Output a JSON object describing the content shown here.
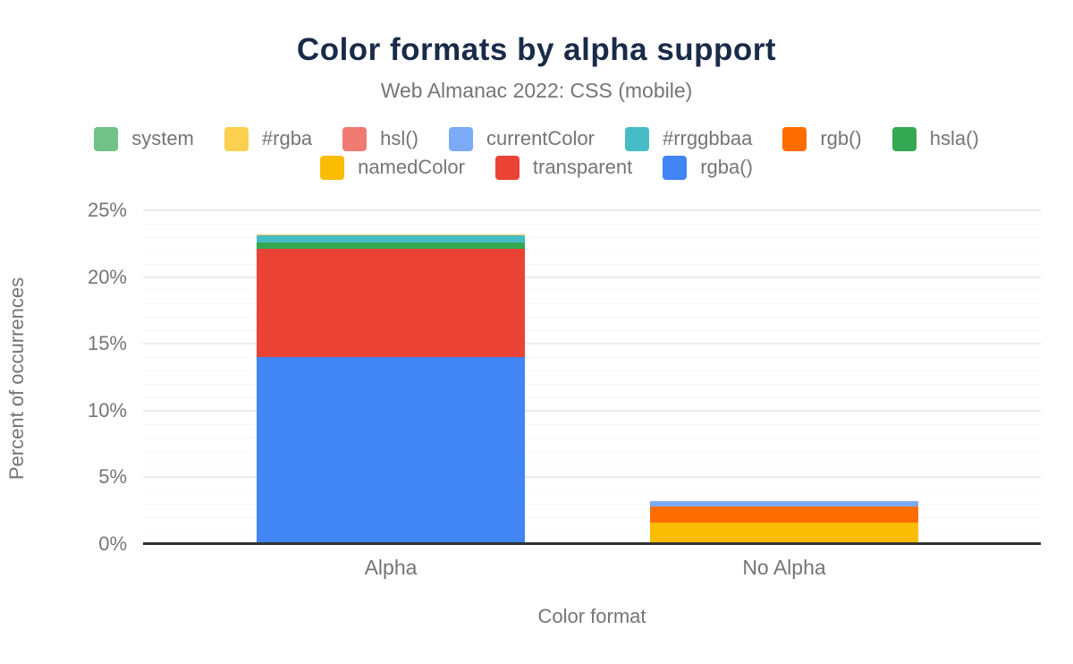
{
  "chart_data": {
    "type": "bar",
    "stacked": true,
    "title": "Color formats by alpha support",
    "subtitle": "Web Almanac 2022: CSS (mobile)",
    "xlabel": "Color format",
    "ylabel": "Percent of occurrences",
    "categories": [
      "Alpha",
      "No Alpha"
    ],
    "ylim": [
      0,
      25
    ],
    "ytick_step": 5,
    "yticks": [
      0,
      5,
      10,
      15,
      20,
      25
    ],
    "ytick_labels": [
      "0%",
      "5%",
      "10%",
      "15%",
      "20%",
      "25%"
    ],
    "grid": "minor-1pct-major-5pct",
    "legend_position": "top",
    "series": [
      {
        "name": "rgba()",
        "color": "#4285f4",
        "values": [
          14.0,
          0
        ]
      },
      {
        "name": "transparent",
        "color": "#ea4335",
        "values": [
          8.1,
          0
        ]
      },
      {
        "name": "namedColor",
        "color": "#fbbc04",
        "values": [
          0,
          1.6
        ]
      },
      {
        "name": "hsla()",
        "color": "#34a853",
        "values": [
          0.5,
          0
        ]
      },
      {
        "name": "rgb()",
        "color": "#ff6d01",
        "values": [
          0,
          1.2
        ]
      },
      {
        "name": "#rrggbbaa",
        "color": "#46bdc6",
        "values": [
          0.55,
          0
        ]
      },
      {
        "name": "currentColor",
        "color": "#7baaf7",
        "values": [
          0,
          0.4
        ]
      },
      {
        "name": "hsl()",
        "color": "#f07b72",
        "values": [
          0,
          0.02
        ]
      },
      {
        "name": "#rgba",
        "color": "#fcd04f",
        "values": [
          0.03,
          0
        ]
      },
      {
        "name": "system",
        "color": "#71c287",
        "values": [
          0,
          0.01
        ]
      }
    ],
    "legend_rows": [
      [
        "system",
        "#rgba",
        "hsl()",
        "currentColor",
        "#rrggbbaa",
        "rgb()",
        "hsla()"
      ],
      [
        "namedColor",
        "transparent",
        "rgba()"
      ]
    ],
    "axis_colors": {
      "baseline": "#333333",
      "major_grid": "#ececec",
      "minor_grid": "#f7f7f7",
      "text": "#757575",
      "title": "#1a2b49"
    }
  }
}
